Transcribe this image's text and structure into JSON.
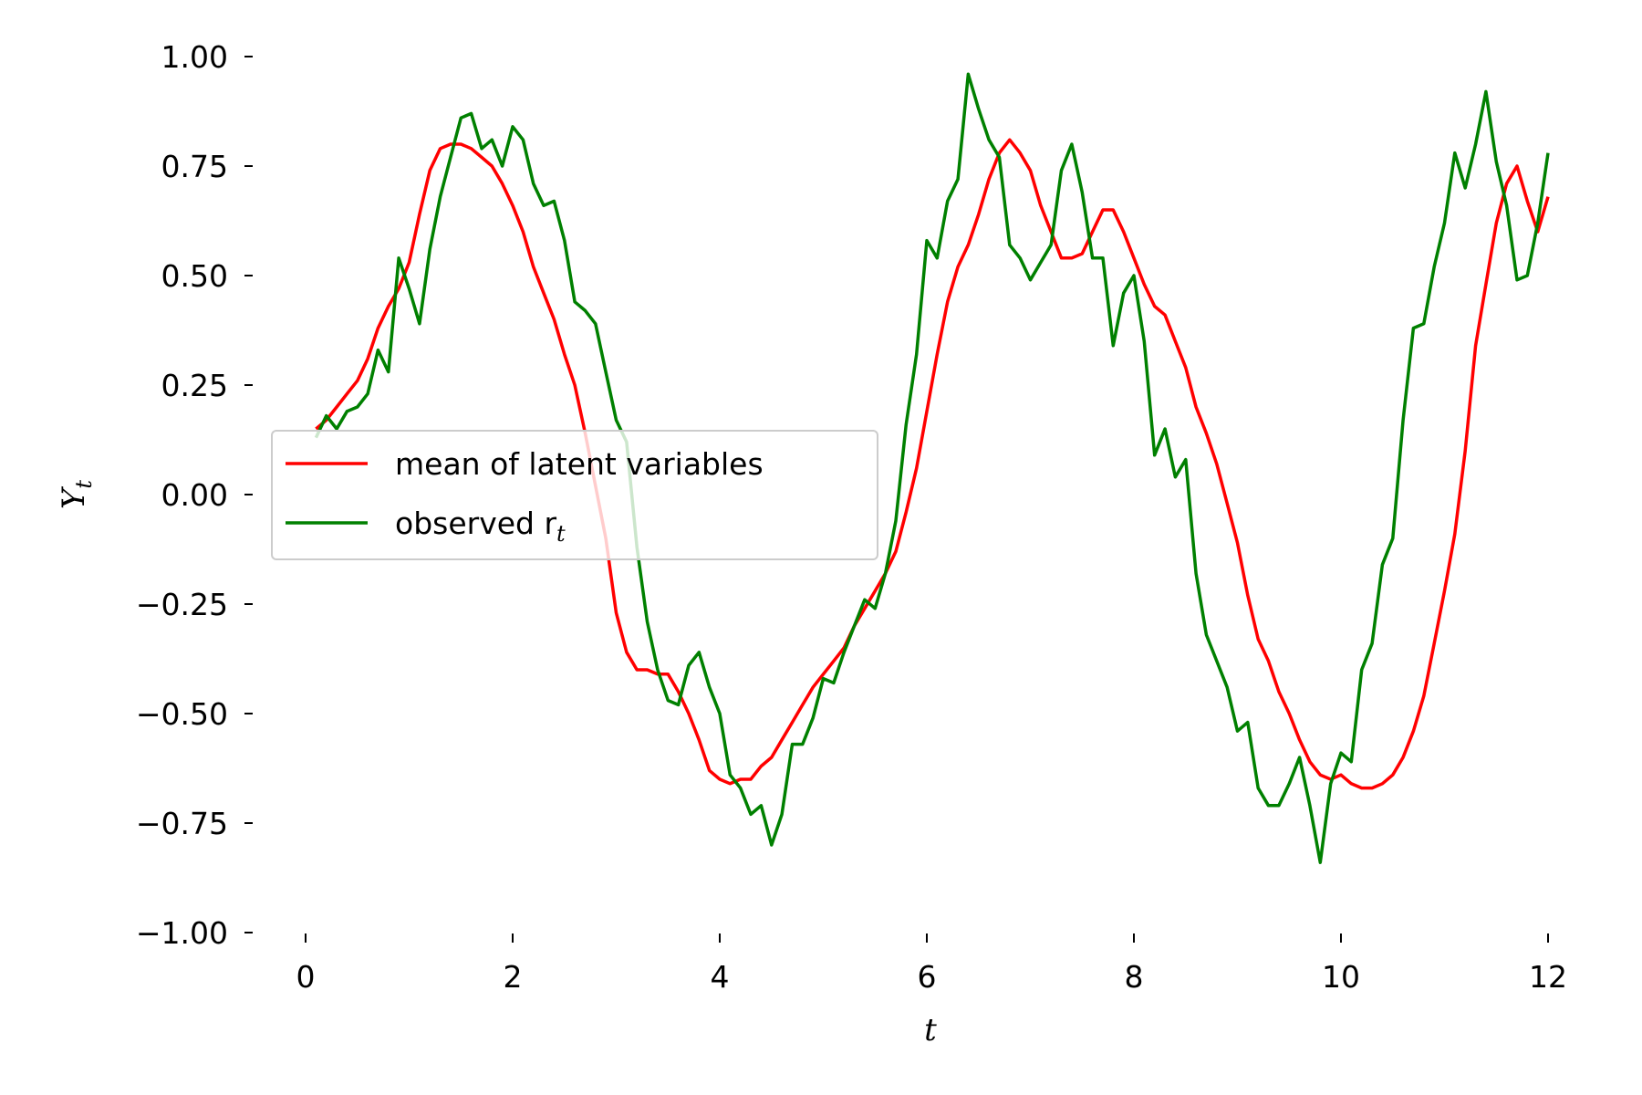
{
  "chart_data": {
    "type": "line",
    "xlabel": "t",
    "ylabel": "Y",
    "ylabel_sub": "t",
    "xlim": [
      0,
      12
    ],
    "ylim": [
      -1.0,
      1.0
    ],
    "x_ticks": [
      0,
      2,
      4,
      6,
      8,
      10,
      12
    ],
    "x_tick_labels": [
      "0",
      "2",
      "4",
      "6",
      "8",
      "10",
      "12"
    ],
    "y_ticks": [
      1.0,
      0.75,
      0.5,
      0.25,
      0.0,
      -0.25,
      -0.5,
      -0.75,
      -1.0
    ],
    "y_tick_labels": [
      "1.00",
      "0.75",
      "0.50",
      "0.25",
      "0.00",
      "−0.25",
      "−0.50",
      "−0.75",
      "−1.00"
    ],
    "grid": false,
    "legend_position": "center-left",
    "series": [
      {
        "name": "mean of latent variables",
        "color": "#ff0000",
        "points": [
          [
            0.1,
            0.15
          ],
          [
            0.2,
            0.17
          ],
          [
            0.3,
            0.2
          ],
          [
            0.4,
            0.23
          ],
          [
            0.5,
            0.26
          ],
          [
            0.6,
            0.31
          ],
          [
            0.7,
            0.38
          ],
          [
            0.8,
            0.43
          ],
          [
            0.9,
            0.47
          ],
          [
            1.0,
            0.53
          ],
          [
            1.1,
            0.64
          ],
          [
            1.2,
            0.74
          ],
          [
            1.3,
            0.79
          ],
          [
            1.4,
            0.8
          ],
          [
            1.5,
            0.8
          ],
          [
            1.6,
            0.79
          ],
          [
            1.7,
            0.77
          ],
          [
            1.8,
            0.75
          ],
          [
            1.9,
            0.71
          ],
          [
            2.0,
            0.66
          ],
          [
            2.1,
            0.6
          ],
          [
            2.2,
            0.52
          ],
          [
            2.3,
            0.46
          ],
          [
            2.4,
            0.4
          ],
          [
            2.5,
            0.32
          ],
          [
            2.6,
            0.25
          ],
          [
            2.7,
            0.14
          ],
          [
            2.8,
            0.02
          ],
          [
            2.9,
            -0.1
          ],
          [
            3.0,
            -0.27
          ],
          [
            3.1,
            -0.36
          ],
          [
            3.2,
            -0.4
          ],
          [
            3.3,
            -0.4
          ],
          [
            3.4,
            -0.41
          ],
          [
            3.5,
            -0.41
          ],
          [
            3.6,
            -0.45
          ],
          [
            3.7,
            -0.5
          ],
          [
            3.8,
            -0.56
          ],
          [
            3.9,
            -0.63
          ],
          [
            4.0,
            -0.65
          ],
          [
            4.1,
            -0.66
          ],
          [
            4.2,
            -0.65
          ],
          [
            4.3,
            -0.65
          ],
          [
            4.4,
            -0.62
          ],
          [
            4.5,
            -0.6
          ],
          [
            4.6,
            -0.56
          ],
          [
            4.7,
            -0.52
          ],
          [
            4.8,
            -0.48
          ],
          [
            4.9,
            -0.44
          ],
          [
            5.0,
            -0.41
          ],
          [
            5.1,
            -0.38
          ],
          [
            5.2,
            -0.35
          ],
          [
            5.3,
            -0.3
          ],
          [
            5.4,
            -0.26
          ],
          [
            5.5,
            -0.22
          ],
          [
            5.6,
            -0.18
          ],
          [
            5.7,
            -0.13
          ],
          [
            5.8,
            -0.04
          ],
          [
            5.9,
            0.06
          ],
          [
            6.0,
            0.19
          ],
          [
            6.1,
            0.32
          ],
          [
            6.2,
            0.44
          ],
          [
            6.3,
            0.52
          ],
          [
            6.4,
            0.57
          ],
          [
            6.5,
            0.64
          ],
          [
            6.6,
            0.72
          ],
          [
            6.7,
            0.78
          ],
          [
            6.8,
            0.81
          ],
          [
            6.9,
            0.78
          ],
          [
            7.0,
            0.74
          ],
          [
            7.1,
            0.66
          ],
          [
            7.2,
            0.6
          ],
          [
            7.3,
            0.54
          ],
          [
            7.4,
            0.54
          ],
          [
            7.5,
            0.55
          ],
          [
            7.6,
            0.6
          ],
          [
            7.7,
            0.65
          ],
          [
            7.8,
            0.65
          ],
          [
            7.9,
            0.6
          ],
          [
            8.0,
            0.54
          ],
          [
            8.1,
            0.48
          ],
          [
            8.2,
            0.43
          ],
          [
            8.3,
            0.41
          ],
          [
            8.4,
            0.35
          ],
          [
            8.5,
            0.29
          ],
          [
            8.6,
            0.2
          ],
          [
            8.7,
            0.14
          ],
          [
            8.8,
            0.07
          ],
          [
            8.9,
            -0.02
          ],
          [
            9.0,
            -0.11
          ],
          [
            9.1,
            -0.23
          ],
          [
            9.2,
            -0.33
          ],
          [
            9.3,
            -0.38
          ],
          [
            9.4,
            -0.45
          ],
          [
            9.5,
            -0.5
          ],
          [
            9.6,
            -0.56
          ],
          [
            9.7,
            -0.61
          ],
          [
            9.8,
            -0.64
          ],
          [
            9.9,
            -0.65
          ],
          [
            10.0,
            -0.64
          ],
          [
            10.1,
            -0.66
          ],
          [
            10.2,
            -0.67
          ],
          [
            10.3,
            -0.67
          ],
          [
            10.4,
            -0.66
          ],
          [
            10.5,
            -0.64
          ],
          [
            10.6,
            -0.6
          ],
          [
            10.7,
            -0.54
          ],
          [
            10.8,
            -0.46
          ],
          [
            10.9,
            -0.34
          ],
          [
            11.0,
            -0.22
          ],
          [
            11.1,
            -0.09
          ],
          [
            11.2,
            0.1
          ],
          [
            11.3,
            0.34
          ],
          [
            11.4,
            0.48
          ],
          [
            11.5,
            0.62
          ],
          [
            11.6,
            0.71
          ],
          [
            11.7,
            0.75
          ],
          [
            11.8,
            0.67
          ],
          [
            11.9,
            0.6
          ],
          [
            12.0,
            0.68
          ]
        ]
      },
      {
        "name": "observed r",
        "name_sub": "t",
        "color": "#008000",
        "points": [
          [
            0.1,
            0.13
          ],
          [
            0.2,
            0.18
          ],
          [
            0.3,
            0.15
          ],
          [
            0.4,
            0.19
          ],
          [
            0.5,
            0.2
          ],
          [
            0.6,
            0.23
          ],
          [
            0.7,
            0.33
          ],
          [
            0.8,
            0.28
          ],
          [
            0.9,
            0.54
          ],
          [
            1.0,
            0.47
          ],
          [
            1.1,
            0.39
          ],
          [
            1.2,
            0.56
          ],
          [
            1.3,
            0.68
          ],
          [
            1.4,
            0.77
          ],
          [
            1.5,
            0.86
          ],
          [
            1.6,
            0.87
          ],
          [
            1.7,
            0.79
          ],
          [
            1.8,
            0.81
          ],
          [
            1.9,
            0.75
          ],
          [
            2.0,
            0.84
          ],
          [
            2.1,
            0.81
          ],
          [
            2.2,
            0.71
          ],
          [
            2.3,
            0.66
          ],
          [
            2.4,
            0.67
          ],
          [
            2.5,
            0.58
          ],
          [
            2.6,
            0.44
          ],
          [
            2.7,
            0.42
          ],
          [
            2.8,
            0.39
          ],
          [
            2.9,
            0.28
          ],
          [
            3.0,
            0.17
          ],
          [
            3.1,
            0.12
          ],
          [
            3.2,
            -0.12
          ],
          [
            3.3,
            -0.29
          ],
          [
            3.4,
            -0.4
          ],
          [
            3.5,
            -0.47
          ],
          [
            3.6,
            -0.48
          ],
          [
            3.7,
            -0.39
          ],
          [
            3.8,
            -0.36
          ],
          [
            3.9,
            -0.44
          ],
          [
            4.0,
            -0.5
          ],
          [
            4.1,
            -0.64
          ],
          [
            4.2,
            -0.67
          ],
          [
            4.3,
            -0.73
          ],
          [
            4.4,
            -0.71
          ],
          [
            4.5,
            -0.8
          ],
          [
            4.6,
            -0.73
          ],
          [
            4.7,
            -0.57
          ],
          [
            4.8,
            -0.57
          ],
          [
            4.9,
            -0.51
          ],
          [
            5.0,
            -0.42
          ],
          [
            5.1,
            -0.43
          ],
          [
            5.2,
            -0.36
          ],
          [
            5.3,
            -0.3
          ],
          [
            5.4,
            -0.24
          ],
          [
            5.5,
            -0.26
          ],
          [
            5.6,
            -0.18
          ],
          [
            5.7,
            -0.06
          ],
          [
            5.8,
            0.16
          ],
          [
            5.9,
            0.32
          ],
          [
            6.0,
            0.58
          ],
          [
            6.1,
            0.54
          ],
          [
            6.2,
            0.67
          ],
          [
            6.3,
            0.72
          ],
          [
            6.4,
            0.96
          ],
          [
            6.5,
            0.88
          ],
          [
            6.6,
            0.81
          ],
          [
            6.7,
            0.77
          ],
          [
            6.8,
            0.57
          ],
          [
            6.9,
            0.54
          ],
          [
            7.0,
            0.49
          ],
          [
            7.1,
            0.53
          ],
          [
            7.2,
            0.57
          ],
          [
            7.3,
            0.74
          ],
          [
            7.4,
            0.8
          ],
          [
            7.5,
            0.69
          ],
          [
            7.6,
            0.54
          ],
          [
            7.7,
            0.54
          ],
          [
            7.8,
            0.34
          ],
          [
            7.9,
            0.46
          ],
          [
            8.0,
            0.5
          ],
          [
            8.1,
            0.35
          ],
          [
            8.2,
            0.09
          ],
          [
            8.3,
            0.15
          ],
          [
            8.4,
            0.04
          ],
          [
            8.5,
            0.08
          ],
          [
            8.6,
            -0.18
          ],
          [
            8.7,
            -0.32
          ],
          [
            8.8,
            -0.38
          ],
          [
            8.9,
            -0.44
          ],
          [
            9.0,
            -0.54
          ],
          [
            9.1,
            -0.52
          ],
          [
            9.2,
            -0.67
          ],
          [
            9.3,
            -0.71
          ],
          [
            9.4,
            -0.71
          ],
          [
            9.5,
            -0.66
          ],
          [
            9.6,
            -0.6
          ],
          [
            9.7,
            -0.71
          ],
          [
            9.8,
            -0.84
          ],
          [
            9.9,
            -0.66
          ],
          [
            10.0,
            -0.59
          ],
          [
            10.1,
            -0.61
          ],
          [
            10.2,
            -0.4
          ],
          [
            10.3,
            -0.34
          ],
          [
            10.4,
            -0.16
          ],
          [
            10.5,
            -0.1
          ],
          [
            10.6,
            0.17
          ],
          [
            10.7,
            0.38
          ],
          [
            10.8,
            0.39
          ],
          [
            10.9,
            0.52
          ],
          [
            11.0,
            0.62
          ],
          [
            11.1,
            0.78
          ],
          [
            11.2,
            0.7
          ],
          [
            11.3,
            0.8
          ],
          [
            11.4,
            0.92
          ],
          [
            11.5,
            0.76
          ],
          [
            11.6,
            0.66
          ],
          [
            11.7,
            0.49
          ],
          [
            11.8,
            0.5
          ],
          [
            11.9,
            0.62
          ],
          [
            12.0,
            0.78
          ]
        ]
      }
    ]
  }
}
